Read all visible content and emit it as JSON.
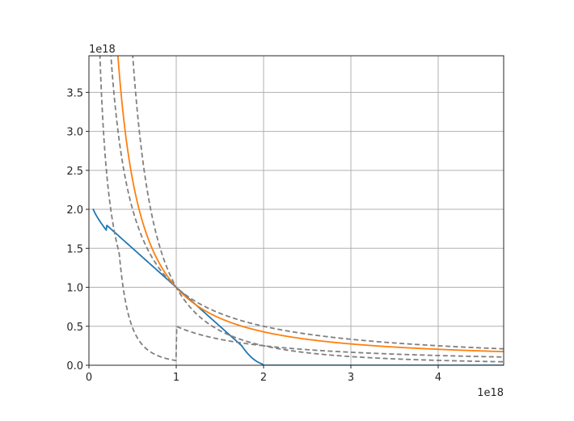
{
  "chart_data": {
    "type": "line",
    "title": "",
    "xlabel": "",
    "ylabel": "",
    "x_offset_text": "1e18",
    "y_offset_text": "1e18",
    "xlim": [
      0,
      4.75
    ],
    "ylim": [
      0,
      3.97
    ],
    "x_ticks": [
      0,
      1,
      2,
      3,
      4
    ],
    "x_tick_labels": [
      "0",
      "1",
      "2",
      "3",
      "4"
    ],
    "y_ticks": [
      0,
      0.5,
      1.0,
      1.5,
      2.0,
      2.5,
      3.0,
      3.5
    ],
    "y_tick_labels": [
      "0.0",
      "0.5",
      "1.0",
      "1.5",
      "2.0",
      "2.5",
      "3.0",
      "3.5"
    ],
    "grid": true,
    "series": [
      {
        "color": "#1f77b4",
        "dash": "solid",
        "x": [
          0.04,
          0.1,
          0.2,
          0.3,
          0.5,
          0.7,
          0.9,
          1.0,
          1.2,
          1.4,
          1.6,
          1.8,
          1.9,
          1.97,
          2.02,
          2.1,
          2.5,
          3.0,
          4.0,
          4.75
        ],
        "y": [
          2.05,
          1.95,
          1.85,
          1.74,
          1.52,
          1.29,
          1.09,
          1.0,
          0.79,
          0.59,
          0.4,
          0.2,
          0.1,
          0.04,
          0.015,
          0.004,
          0.0,
          0.0,
          0.0,
          0.0
        ]
      },
      {
        "color": "#ff7f0e",
        "dash": "solid",
        "x": [
          0.12,
          0.15,
          0.2,
          0.25,
          0.3,
          0.4,
          0.5,
          0.6,
          0.7,
          0.8,
          1.0,
          1.2,
          1.5,
          1.8,
          2.0,
          2.5,
          3.0,
          3.5,
          4.0,
          4.75
        ],
        "y": [
          3.97,
          3.5,
          2.7,
          2.3,
          2.02,
          1.7,
          1.5,
          1.36,
          1.25,
          1.15,
          1.0,
          0.81,
          0.6,
          0.45,
          0.38,
          0.27,
          0.19,
          0.14,
          0.115,
          0.09
        ]
      },
      {
        "color": "#808080",
        "dash": "dashed",
        "function": "1/x^2",
        "x": [
          0.502,
          0.52,
          0.55,
          0.6,
          0.65,
          0.7,
          0.8,
          0.9,
          1.0,
          1.2,
          1.5,
          2.0,
          2.5,
          3.0,
          3.5,
          4.0,
          4.75
        ],
        "y": [
          3.97,
          3.698,
          3.306,
          2.778,
          2.367,
          2.041,
          1.563,
          1.235,
          1.0,
          0.694,
          0.444,
          0.25,
          0.16,
          0.111,
          0.082,
          0.063,
          0.044
        ]
      },
      {
        "color": "#808080",
        "dash": "dashed",
        "function": "1/x",
        "x": [
          0.252,
          0.26,
          0.28,
          0.3,
          0.33,
          0.36,
          0.4,
          0.45,
          0.5,
          0.6,
          0.7,
          0.8,
          1.0,
          1.5,
          2.0,
          3.0,
          4.0,
          4.75
        ],
        "y": [
          3.97,
          3.846,
          3.571,
          3.333,
          3.03,
          2.778,
          2.5,
          2.222,
          2.0,
          1.667,
          1.429,
          1.25,
          1.0,
          0.667,
          0.5,
          0.333,
          0.25,
          0.211
        ]
      },
      {
        "color": "#808080",
        "dash": "dashed",
        "function": "1/x^2 (steep)",
        "x": [
          0.254,
          0.26,
          0.27,
          0.28,
          0.3,
          0.33,
          0.36,
          0.4,
          0.45,
          0.5,
          0.6,
          0.7,
          0.8,
          0.9,
          1.0,
          1.2,
          1.5,
          2.0,
          2.5,
          3.0,
          4.0,
          4.75
        ],
        "y": [
          3.97,
          3.698,
          3.43,
          3.189,
          2.778,
          2.296,
          1.929,
          1.563,
          1.235,
          1.0,
          0.694,
          0.51,
          0.391,
          0.309,
          0.5,
          0.0,
          0.0,
          0.0,
          0.0,
          0.0,
          0.0,
          0.0
        ]
      }
    ]
  }
}
